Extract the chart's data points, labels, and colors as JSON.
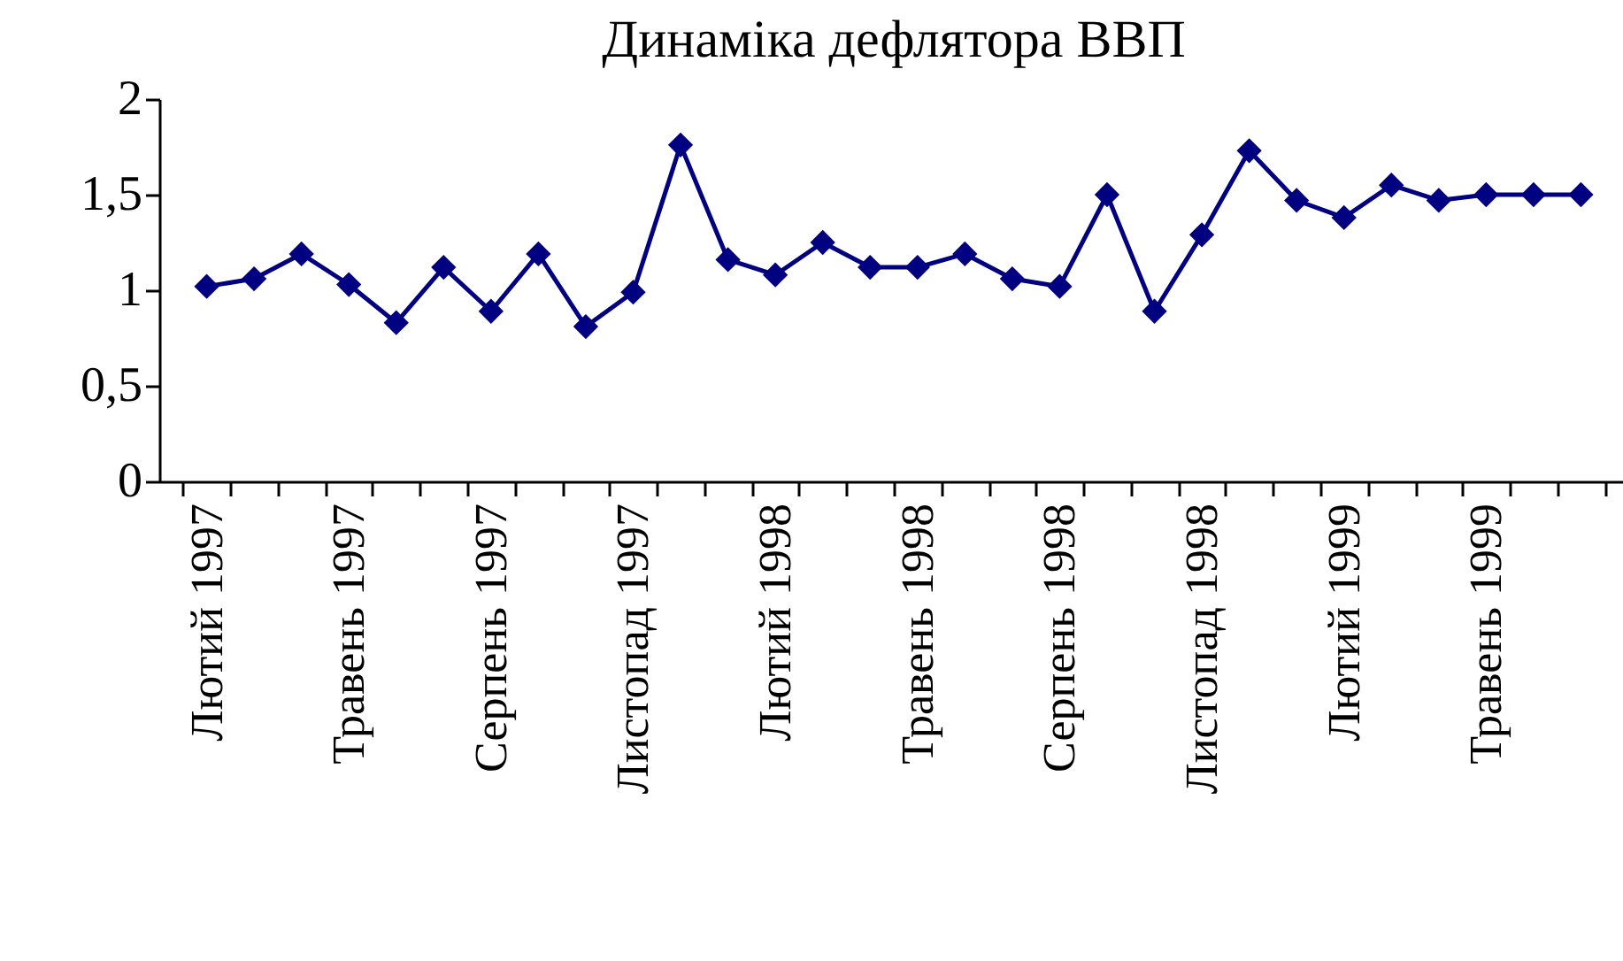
{
  "chart_data": {
    "type": "line",
    "title": "Динаміка дефлятора ВВП",
    "categories": [
      "Лютий 1997",
      null,
      null,
      "Травень 1997",
      null,
      null,
      "Серпень 1997",
      null,
      null,
      "Листопад 1997",
      null,
      null,
      "Лютий 1998",
      null,
      null,
      "Травень 1998",
      null,
      null,
      "Серпень 1998",
      null,
      null,
      "Листопад 1998",
      null,
      null,
      "Лютий 1999",
      null,
      null,
      "Травень 1999",
      null,
      null
    ],
    "series": [
      {
        "color": "#000080",
        "values": [
          1.02,
          1.06,
          1.19,
          1.03,
          0.83,
          1.12,
          0.89,
          1.19,
          0.81,
          0.99,
          1.76,
          1.16,
          1.08,
          1.25,
          1.12,
          1.12,
          1.19,
          1.06,
          1.02,
          1.5,
          0.89,
          1.29,
          1.73,
          1.47,
          1.38,
          1.55,
          1.47,
          1.5,
          1.5,
          1.5
        ]
      }
    ],
    "ylim": [
      0,
      2
    ],
    "yticks": [
      0,
      {
        "value": 0.5,
        "label": "0,5"
      },
      1,
      {
        "value": 1.5,
        "label": "1,5"
      },
      2
    ],
    "marker": "diamond",
    "grid": false
  }
}
